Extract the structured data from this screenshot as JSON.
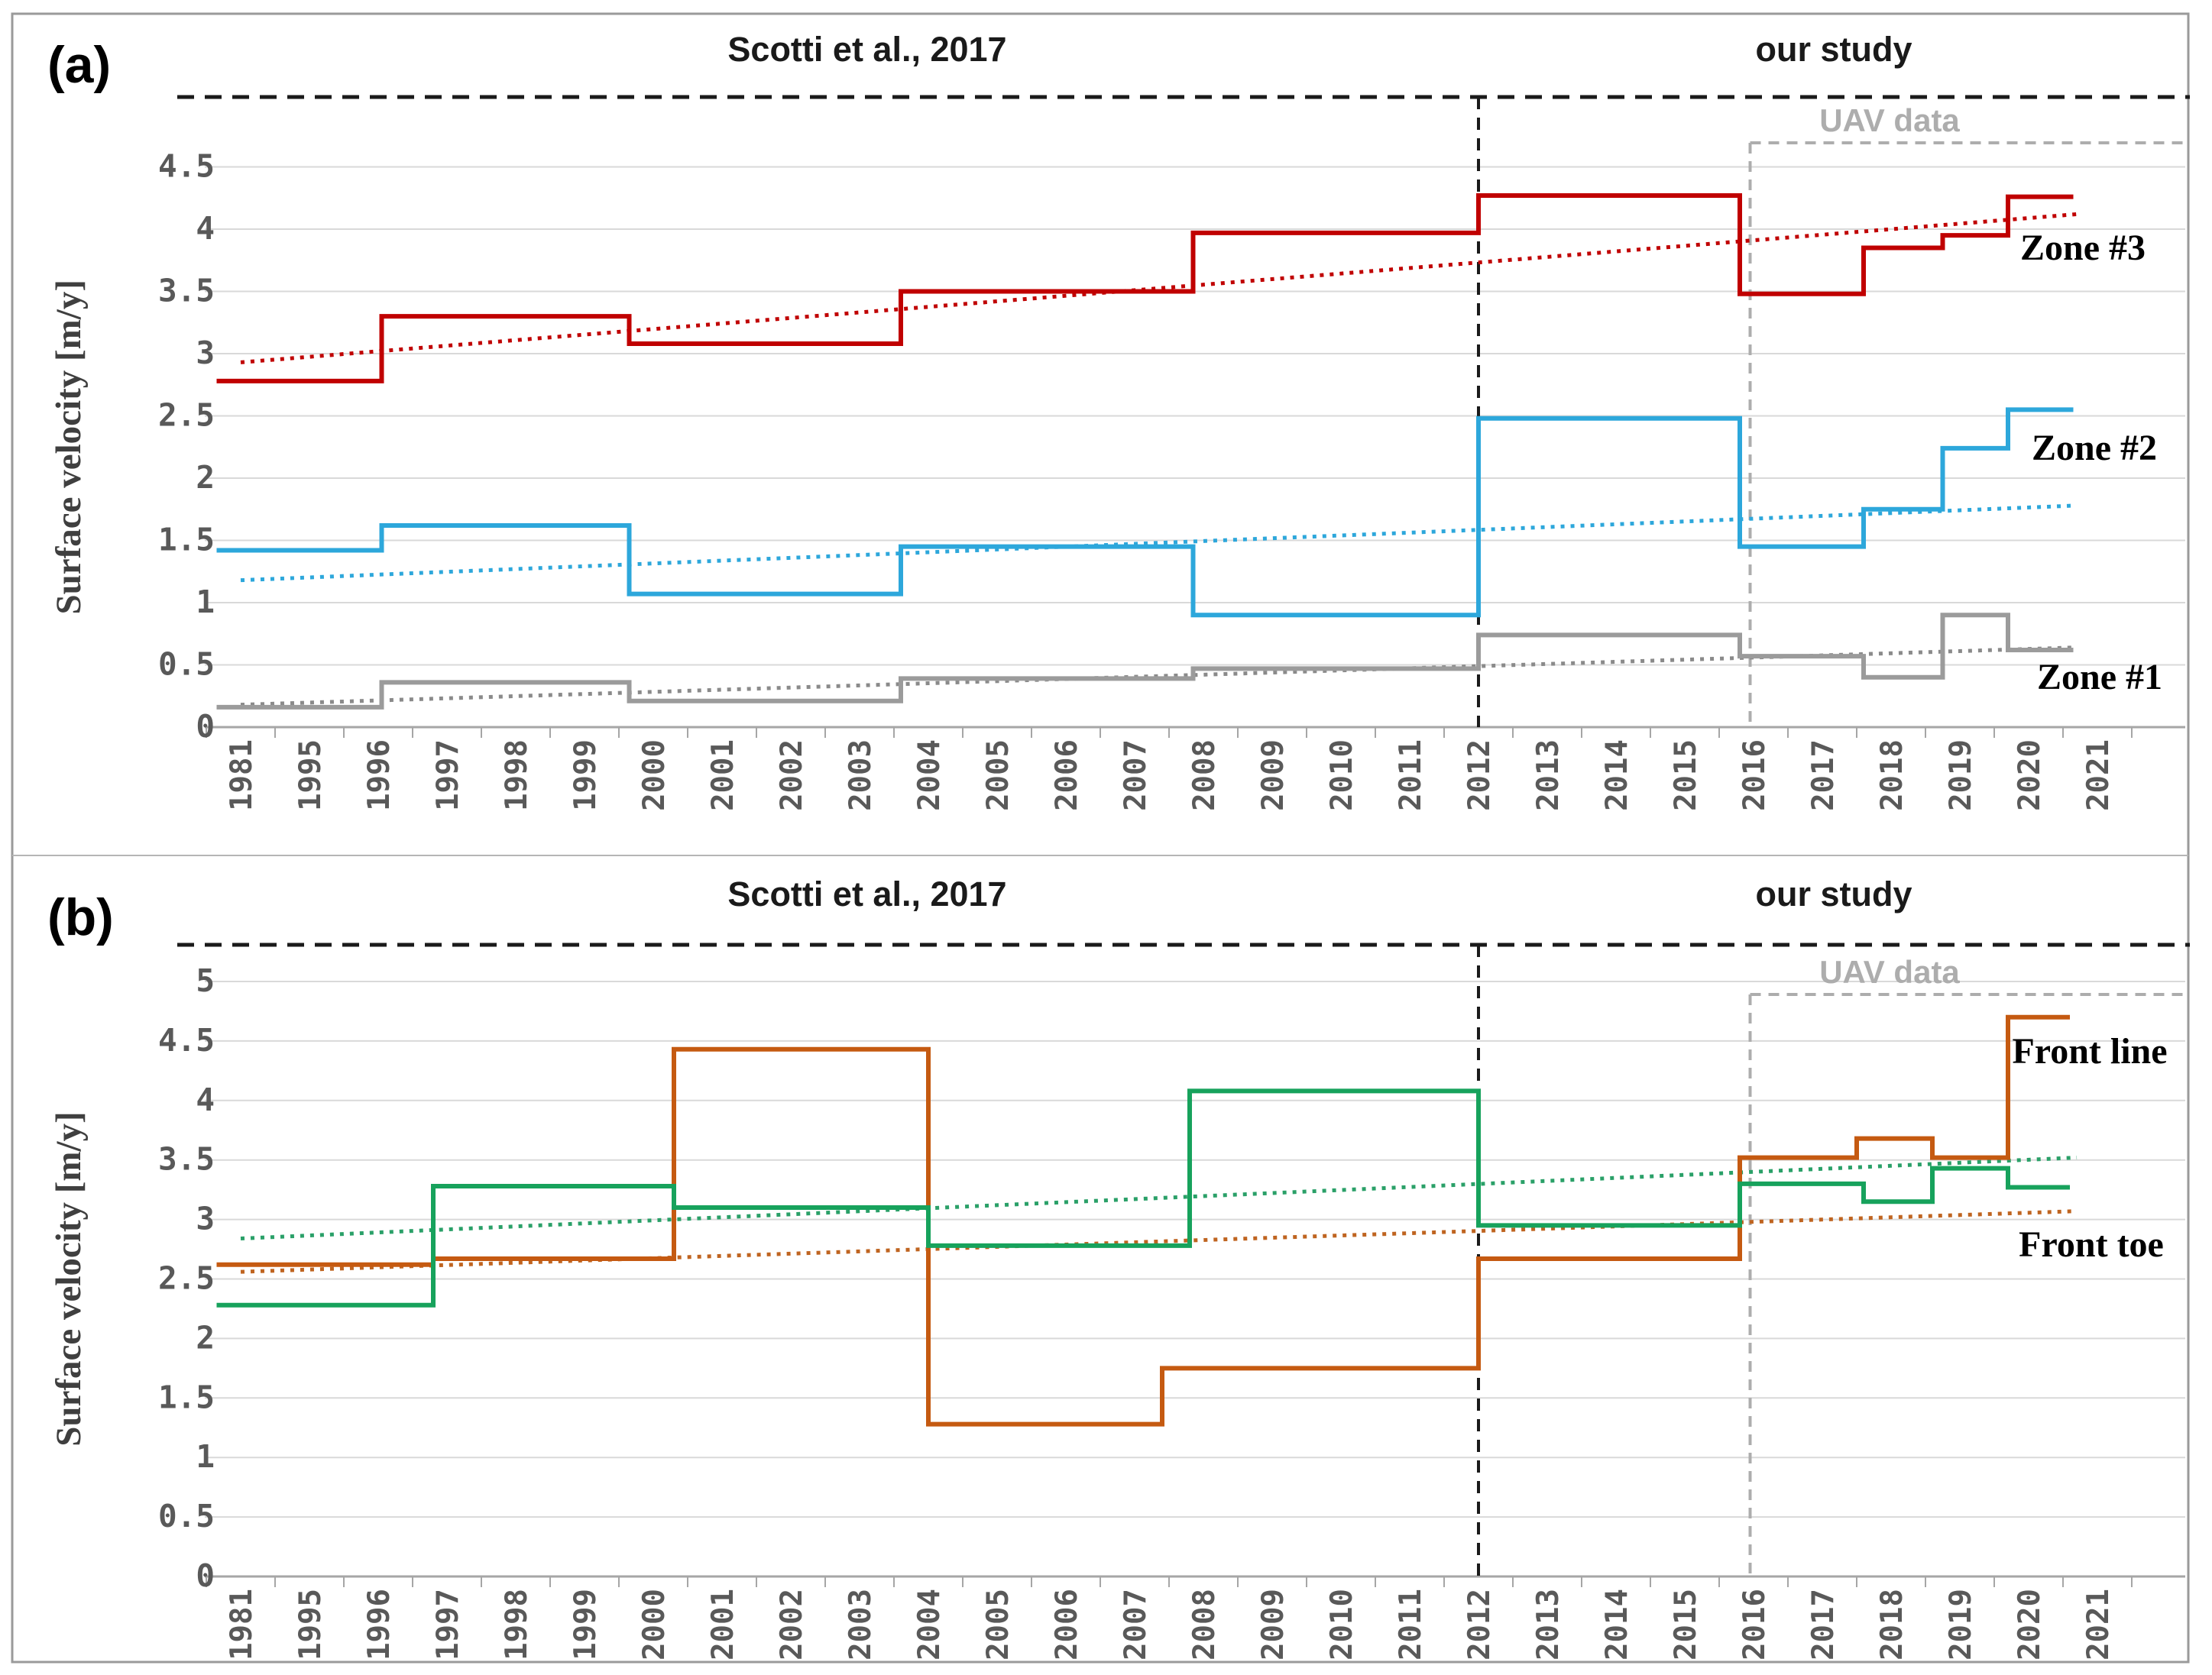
{
  "figure": {
    "outer_border_color": "#9a9a9a",
    "background": "#ffffff"
  },
  "chart_data": [
    {
      "type": "line",
      "subtype": "step",
      "panel_tag": "(a)",
      "era_label_left": "Scotti et al., 2017",
      "era_label_right": "our study",
      "uav_label": "UAV data",
      "ylabel": "Surface velocity [m/y]",
      "ylim": [
        0,
        4.75
      ],
      "yticks": [
        0,
        0.5,
        1,
        1.5,
        2,
        2.5,
        3,
        3.5,
        4,
        4.5
      ],
      "ytick_labels": [
        "0",
        "0.5",
        "1",
        "1.5",
        "2",
        "2.5",
        "3",
        "3.5",
        "4",
        "4.5"
      ],
      "categories": [
        "1981",
        "1995",
        "1996",
        "1997",
        "1998",
        "1999",
        "2000",
        "2001",
        "2002",
        "2003",
        "2004",
        "2005",
        "2006",
        "2007",
        "2008",
        "2009",
        "2010",
        "2011",
        "2012",
        "2013",
        "2014",
        "2015",
        "2016",
        "2017",
        "2018",
        "2019",
        "2020",
        "2021"
      ],
      "grid": true,
      "study_divider_year": "2012",
      "study_divider_index": 18.0,
      "uav_start_year": "2016",
      "uav_start_index": 21.95,
      "series": [
        {
          "name": "Zone #3",
          "color": "#c00000",
          "trend_color": "#c00000",
          "points": [
            [
              -0.35,
              2.78
            ],
            [
              2.05,
              3.3
            ],
            [
              5.65,
              3.08
            ],
            [
              9.6,
              3.5
            ],
            [
              13.85,
              3.97
            ],
            [
              18.0,
              4.27
            ],
            [
              21.8,
              3.48
            ],
            [
              23.6,
              3.85
            ],
            [
              24.75,
              3.95
            ],
            [
              25.7,
              4.26
            ]
          ],
          "x_end": 26.65,
          "trend": [
            [
              0,
              2.93
            ],
            [
              26.7,
              4.12
            ]
          ]
        },
        {
          "name": "Zone #2",
          "color": "#2da7db",
          "trend_color": "#2da7db",
          "points": [
            [
              -0.35,
              1.42
            ],
            [
              2.05,
              1.62
            ],
            [
              5.65,
              1.07
            ],
            [
              9.6,
              1.45
            ],
            [
              13.85,
              0.9
            ],
            [
              18.0,
              2.48
            ],
            [
              21.8,
              1.45
            ],
            [
              23.6,
              1.75
            ],
            [
              24.75,
              2.24
            ],
            [
              25.7,
              2.55
            ]
          ],
          "x_end": 26.65,
          "trend": [
            [
              0,
              1.18
            ],
            [
              26.7,
              1.78
            ]
          ]
        },
        {
          "name": "Zone #1",
          "color": "#9b9b9b",
          "trend_color": "#8a8a8a",
          "points": [
            [
              -0.35,
              0.16
            ],
            [
              2.05,
              0.36
            ],
            [
              5.65,
              0.21
            ],
            [
              9.6,
              0.39
            ],
            [
              13.85,
              0.47
            ],
            [
              18.0,
              0.74
            ],
            [
              21.8,
              0.57
            ],
            [
              23.6,
              0.4
            ],
            [
              24.75,
              0.9
            ],
            [
              25.7,
              0.62
            ]
          ],
          "x_end": 26.65,
          "trend": [
            [
              0,
              0.18
            ],
            [
              26.7,
              0.64
            ]
          ]
        }
      ]
    },
    {
      "type": "line",
      "subtype": "step",
      "panel_tag": "(b)",
      "era_label_left": "Scotti et al., 2017",
      "era_label_right": "our study",
      "uav_label": "UAV data",
      "ylabel": "Surface velocity [m/y]",
      "ylim": [
        0,
        5.25
      ],
      "yticks": [
        0,
        0.5,
        1,
        1.5,
        2,
        2.5,
        3,
        3.5,
        4,
        4.5,
        5
      ],
      "ytick_labels": [
        "0",
        "0.5",
        "1",
        "1.5",
        "2",
        "2.5",
        "3",
        "3.5",
        "4",
        "4.5",
        "5"
      ],
      "categories": [
        "1981",
        "1995",
        "1996",
        "1997",
        "1998",
        "1999",
        "2000",
        "2001",
        "2002",
        "2003",
        "2004",
        "2005",
        "2006",
        "2007",
        "2008",
        "2009",
        "2010",
        "2011",
        "2012",
        "2013",
        "2014",
        "2015",
        "2016",
        "2017",
        "2018",
        "2019",
        "2020",
        "2021"
      ],
      "grid": true,
      "study_divider_year": "2012",
      "study_divider_index": 18.0,
      "uav_start_year": "2016",
      "uav_start_index": 21.95,
      "series": [
        {
          "name": "Front line",
          "color": "#c55a11",
          "trend_color": "#bf6420",
          "points": [
            [
              -0.35,
              2.62
            ],
            [
              2.8,
              2.67
            ],
            [
              6.3,
              4.43
            ],
            [
              10.0,
              1.28
            ],
            [
              13.4,
              1.75
            ],
            [
              18.0,
              2.67
            ],
            [
              21.8,
              3.52
            ],
            [
              23.5,
              3.68
            ],
            [
              24.6,
              3.52
            ],
            [
              25.7,
              4.7
            ]
          ],
          "x_end": 26.6,
          "trend": [
            [
              0,
              2.56
            ],
            [
              26.7,
              3.07
            ]
          ]
        },
        {
          "name": "Front toe",
          "color": "#17a25c",
          "trend_color": "#2aa068",
          "points": [
            [
              -0.35,
              2.28
            ],
            [
              2.8,
              3.28
            ],
            [
              6.3,
              3.1
            ],
            [
              10.0,
              2.78
            ],
            [
              13.8,
              4.08
            ],
            [
              18.0,
              2.95
            ],
            [
              21.8,
              3.3
            ],
            [
              23.6,
              3.15
            ],
            [
              24.6,
              3.43
            ],
            [
              25.7,
              3.27
            ]
          ],
          "x_end": 26.6,
          "trend": [
            [
              0,
              2.84
            ],
            [
              26.7,
              3.52
            ]
          ]
        }
      ]
    }
  ],
  "style": {
    "grid_color": "#d9d9d9",
    "axis_color": "#a6a6a6",
    "tick_label_color": "#595959",
    "era_text_color": "#1a1a1a",
    "uav_color": "#adadad",
    "series_label_color": "#000000",
    "black_dash_color": "#1a1a1a"
  }
}
